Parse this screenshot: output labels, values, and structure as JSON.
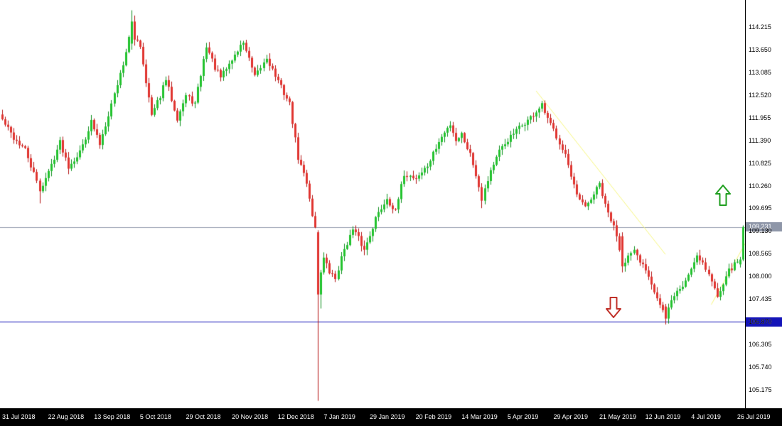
{
  "window": {
    "background": "#ffffff"
  },
  "price_axis": {
    "text_color": "#000000",
    "separator_color": "#000000"
  },
  "time_axis": {
    "bg": "#000000",
    "text_color": "#ffffff"
  },
  "chart_data": {
    "type": "candlestick",
    "timeframe": "daily",
    "num_candles": 259,
    "ylim": [
      104.715,
      114.887
    ],
    "price_grid_step": 0.565,
    "up_color": "#22c32e",
    "up_border": "#0e8f1e",
    "down_color": "#e03430",
    "down_border": "#b31414",
    "noise_seed": 42,
    "noise_amp": 0.07,
    "wick_amp": 0.12,
    "y_ticks": [
      "114.215",
      "113.650",
      "113.085",
      "112.520",
      "111.955",
      "111.390",
      "110.825",
      "110.260",
      "109.695",
      "109.130",
      "108.565",
      "108.000",
      "107.435",
      "106.870",
      "106.305",
      "105.740",
      "105.175"
    ],
    "x_ticks": [
      {
        "label": "31 Jul 2018",
        "day": 0
      },
      {
        "label": "22 Aug 2018",
        "day": 16
      },
      {
        "label": "13 Sep 2018",
        "day": 32
      },
      {
        "label": "5 Oct 2018",
        "day": 48
      },
      {
        "label": "29 Oct 2018",
        "day": 64
      },
      {
        "label": "20 Nov 2018",
        "day": 80
      },
      {
        "label": "12 Dec 2018",
        "day": 96
      },
      {
        "label": "7 Jan 2019",
        "day": 112
      },
      {
        "label": "29 Jan 2019",
        "day": 128
      },
      {
        "label": "20 Feb 2019",
        "day": 144
      },
      {
        "label": "14 Mar 2019",
        "day": 160
      },
      {
        "label": "5 Apr 2019",
        "day": 176
      },
      {
        "label": "29 Apr 2019",
        "day": 192
      },
      {
        "label": "21 May 2019",
        "day": 208
      },
      {
        "label": "12 Jun 2019",
        "day": 224
      },
      {
        "label": "4 Jul 2019",
        "day": 240
      },
      {
        "label": "26 Jul 2019",
        "day": 256
      }
    ],
    "horizontal_lines": [
      {
        "price": 109.231,
        "label": "109.231",
        "color": "#9099ab",
        "badge_bg": "#8e96a8",
        "badge_fg": "#ffffff",
        "name": "current-price-line"
      },
      {
        "price": 106.87,
        "label": "106.870",
        "color": "#1414b8",
        "badge_bg": "#1414b8",
        "badge_fg": "#ffffff",
        "name": "support-level-line"
      }
    ],
    "trendlines": [
      {
        "x1_day": 186,
        "price1": 112.62,
        "x2_day": 231,
        "price2": 108.55,
        "color": "#f6f67d",
        "direction": "descending"
      },
      {
        "x1_day": 247,
        "price1": 107.3,
        "x2_day": 258.8,
        "price2": 108.82,
        "color": "#f6f67d",
        "direction": "ascending"
      }
    ],
    "arrows": [
      {
        "dir": "up",
        "day": 251,
        "price": 110.02,
        "color": "#1e9e1e"
      },
      {
        "dir": "down",
        "day": 213,
        "price": 107.22,
        "color": "#c03028"
      }
    ],
    "anchors": [
      [
        0,
        111.9
      ],
      [
        4,
        111.45
      ],
      [
        8,
        111.15
      ],
      [
        13,
        110.15
      ],
      [
        16,
        110.6
      ],
      [
        20,
        111.35
      ],
      [
        23,
        110.75
      ],
      [
        27,
        111.1
      ],
      [
        31,
        111.85
      ],
      [
        34,
        111.3
      ],
      [
        38,
        112.3
      ],
      [
        42,
        113.3
      ],
      [
        45,
        114.25
      ],
      [
        48,
        113.75
      ],
      [
        52,
        112.0
      ],
      [
        55,
        112.5
      ],
      [
        57,
        112.9
      ],
      [
        61,
        111.95
      ],
      [
        64,
        112.5
      ],
      [
        67,
        112.3
      ],
      [
        71,
        113.75
      ],
      [
        74,
        113.2
      ],
      [
        76,
        112.95
      ],
      [
        80,
        113.4
      ],
      [
        84,
        113.85
      ],
      [
        88,
        112.95
      ],
      [
        92,
        113.45
      ],
      [
        96,
        112.85
      ],
      [
        100,
        112.3
      ],
      [
        103,
        110.95
      ],
      [
        106,
        110.35
      ],
      [
        108,
        109.55
      ],
      [
        109,
        109.2
      ],
      [
        110,
        107.6
      ],
      [
        112,
        108.45
      ],
      [
        114,
        108.1
      ],
      [
        116,
        107.95
      ],
      [
        119,
        108.7
      ],
      [
        122,
        109.15
      ],
      [
        124,
        108.95
      ],
      [
        126,
        108.65
      ],
      [
        130,
        109.45
      ],
      [
        134,
        109.95
      ],
      [
        137,
        109.6
      ],
      [
        140,
        110.55
      ],
      [
        144,
        110.45
      ],
      [
        148,
        110.75
      ],
      [
        152,
        111.35
      ],
      [
        156,
        111.8
      ],
      [
        158,
        111.4
      ],
      [
        160,
        111.55
      ],
      [
        163,
        111.05
      ],
      [
        165,
        110.55
      ],
      [
        167,
        109.95
      ],
      [
        170,
        110.65
      ],
      [
        173,
        111.1
      ],
      [
        176,
        111.4
      ],
      [
        180,
        111.7
      ],
      [
        184,
        111.95
      ],
      [
        188,
        112.25
      ],
      [
        190,
        111.9
      ],
      [
        192,
        111.65
      ],
      [
        196,
        111.05
      ],
      [
        198,
        110.45
      ],
      [
        200,
        110.0
      ],
      [
        203,
        109.7
      ],
      [
        206,
        110.05
      ],
      [
        208,
        110.3
      ],
      [
        210,
        109.75
      ],
      [
        212,
        109.4
      ],
      [
        214,
        109.05
      ],
      [
        216,
        108.3
      ],
      [
        218,
        108.5
      ],
      [
        220,
        108.6
      ],
      [
        222,
        108.35
      ],
      [
        224,
        108.2
      ],
      [
        226,
        107.85
      ],
      [
        229,
        107.3
      ],
      [
        231,
        107.0
      ],
      [
        234,
        107.55
      ],
      [
        237,
        107.75
      ],
      [
        240,
        108.2
      ],
      [
        242,
        108.55
      ],
      [
        244,
        108.35
      ],
      [
        246,
        108.05
      ],
      [
        249,
        107.5
      ],
      [
        252,
        108.05
      ],
      [
        255,
        108.3
      ],
      [
        257,
        108.45
      ],
      [
        258,
        109.231
      ]
    ],
    "special_candles": [
      {
        "index": 13,
        "low": 109.82
      },
      {
        "index": 45,
        "open": 113.8,
        "close": 114.35,
        "high": 114.63,
        "low": 113.65
      },
      {
        "index": 46,
        "open": 114.35,
        "close": 113.9,
        "high": 114.5,
        "low": 113.75
      },
      {
        "index": 110,
        "open": 109.1,
        "close": 107.55,
        "high": 109.15,
        "low": 104.9
      },
      {
        "index": 111,
        "open": 107.55,
        "close": 108.1,
        "low": 107.2
      },
      {
        "index": 167,
        "low": 109.7
      },
      {
        "index": 216,
        "open": 109.0,
        "close": 108.25,
        "low": 108.1
      },
      {
        "index": 231,
        "open": 107.25,
        "close": 106.95,
        "low": 106.8
      },
      {
        "index": 257,
        "open": 108.3,
        "close": 108.42
      },
      {
        "index": 258,
        "open": 108.42,
        "close": 109.231,
        "high": 109.27,
        "low": 108.38
      }
    ]
  }
}
